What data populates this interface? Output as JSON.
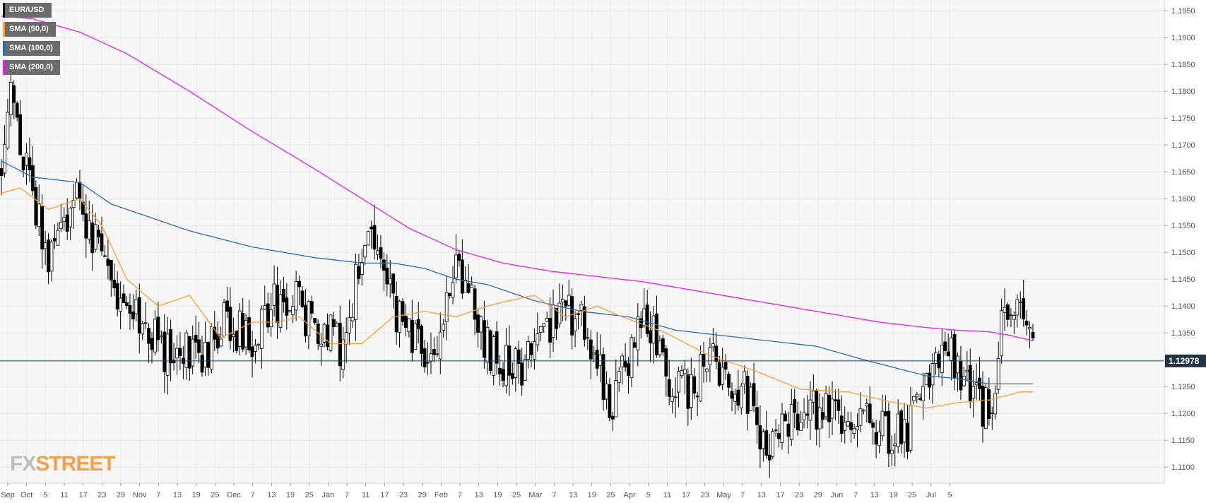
{
  "chart_data": {
    "type": "candlestick",
    "legend": [
      {
        "label": "EUR/USD",
        "color": "#000000"
      },
      {
        "label": "SMA (50,0)",
        "color": "#f7a034"
      },
      {
        "label": "SMA (100,0)",
        "color": "#2f6bb4"
      },
      {
        "label": "SMA (200,0)",
        "color": "#e61ee6"
      }
    ],
    "last_price_label": "1.12978",
    "last_price": 1.12978,
    "ylim": [
      1.107,
      1.197
    ],
    "y_ticks": [
      "1.1950",
      "1.1900",
      "1.1850",
      "1.1800",
      "1.1750",
      "1.1700",
      "1.1650",
      "1.1600",
      "1.1550",
      "1.1500",
      "1.1450",
      "1.1400",
      "1.1350",
      "1.1300",
      "1.1250",
      "1.1200",
      "1.1150",
      "1.1100"
    ],
    "x_ticks": [
      "Sep",
      "Oct",
      "5",
      "11",
      "17",
      "23",
      "29",
      "Nov",
      "7",
      "13",
      "19",
      "25",
      "Dec",
      "7",
      "13",
      "19",
      "25",
      "Jan",
      "7",
      "11",
      "17",
      "23",
      "29",
      "Feb",
      "7",
      "13",
      "19",
      "25",
      "Mar",
      "7",
      "13",
      "19",
      "25",
      "Apr",
      "5",
      "11",
      "17",
      "23",
      "May",
      "7",
      "13",
      "17",
      "23",
      "29",
      "Jun",
      "7",
      "13",
      "19",
      "25",
      "Jul",
      "5"
    ],
    "series_keypoints": {
      "close": [
        [
          0,
          1.168
        ],
        [
          3,
          1.178
        ],
        [
          8,
          1.165
        ],
        [
          15,
          1.15
        ],
        [
          25,
          1.16
        ],
        [
          35,
          1.145
        ],
        [
          45,
          1.135
        ],
        [
          52,
          1.132
        ],
        [
          58,
          1.133
        ],
        [
          65,
          1.13
        ],
        [
          72,
          1.138
        ],
        [
          80,
          1.132
        ],
        [
          90,
          1.143
        ],
        [
          100,
          1.137
        ],
        [
          108,
          1.133
        ],
        [
          117,
          1.152
        ],
        [
          125,
          1.14
        ],
        [
          132,
          1.134
        ],
        [
          138,
          1.13
        ],
        [
          145,
          1.147
        ],
        [
          155,
          1.133
        ],
        [
          163,
          1.128
        ],
        [
          172,
          1.133
        ],
        [
          181,
          1.14
        ],
        [
          188,
          1.133
        ],
        [
          195,
          1.121
        ],
        [
          205,
          1.14
        ],
        [
          212,
          1.128
        ],
        [
          220,
          1.125
        ],
        [
          228,
          1.13
        ],
        [
          238,
          1.123
        ],
        [
          245,
          1.113
        ],
        [
          255,
          1.122
        ],
        [
          265,
          1.121
        ],
        [
          272,
          1.117
        ],
        [
          280,
          1.118
        ],
        [
          288,
          1.115
        ],
        [
          296,
          1.125
        ],
        [
          300,
          1.133
        ],
        [
          305,
          1.128
        ],
        [
          310,
          1.122
        ],
        [
          316,
          1.122
        ],
        [
          320,
          1.14
        ],
        [
          326,
          1.137
        ],
        [
          329,
          1.13
        ]
      ],
      "sma50": [
        [
          0,
          1.161
        ],
        [
          6,
          1.162
        ],
        [
          15,
          1.158
        ],
        [
          25,
          1.16
        ],
        [
          32,
          1.155
        ],
        [
          40,
          1.145
        ],
        [
          50,
          1.14
        ],
        [
          60,
          1.142
        ],
        [
          70,
          1.134
        ],
        [
          80,
          1.137
        ],
        [
          88,
          1.137
        ],
        [
          95,
          1.138
        ],
        [
          105,
          1.133
        ],
        [
          115,
          1.133
        ],
        [
          125,
          1.138
        ],
        [
          135,
          1.139
        ],
        [
          145,
          1.138
        ],
        [
          155,
          1.14
        ],
        [
          162,
          1.141
        ],
        [
          170,
          1.142
        ],
        [
          180,
          1.138
        ],
        [
          190,
          1.14
        ],
        [
          198,
          1.138
        ],
        [
          212,
          1.135
        ],
        [
          225,
          1.131
        ],
        [
          240,
          1.128
        ],
        [
          255,
          1.1245
        ],
        [
          270,
          1.124
        ],
        [
          285,
          1.122
        ],
        [
          295,
          1.121
        ],
        [
          305,
          1.122
        ],
        [
          315,
          1.1225
        ],
        [
          325,
          1.124
        ],
        [
          329,
          1.124
        ]
      ],
      "sma100": [
        [
          0,
          1.167
        ],
        [
          10,
          1.164
        ],
        [
          25,
          1.163
        ],
        [
          35,
          1.159
        ],
        [
          45,
          1.157
        ],
        [
          60,
          1.154
        ],
        [
          80,
          1.151
        ],
        [
          100,
          1.149
        ],
        [
          115,
          1.148
        ],
        [
          125,
          1.148
        ],
        [
          135,
          1.147
        ],
        [
          145,
          1.145
        ],
        [
          155,
          1.144
        ],
        [
          170,
          1.141
        ],
        [
          185,
          1.139
        ],
        [
          200,
          1.138
        ],
        [
          215,
          1.1355
        ],
        [
          230,
          1.1345
        ],
        [
          245,
          1.1335
        ],
        [
          260,
          1.1325
        ],
        [
          275,
          1.13
        ],
        [
          285,
          1.1285
        ],
        [
          295,
          1.127
        ],
        [
          305,
          1.1265
        ],
        [
          315,
          1.1255
        ],
        [
          329,
          1.1255
        ]
      ],
      "sma200": [
        [
          0,
          1.194
        ],
        [
          10,
          1.1935
        ],
        [
          25,
          1.191
        ],
        [
          40,
          1.187
        ],
        [
          60,
          1.18
        ],
        [
          80,
          1.1725
        ],
        [
          100,
          1.1655
        ],
        [
          115,
          1.16
        ],
        [
          130,
          1.1545
        ],
        [
          145,
          1.1505
        ],
        [
          160,
          1.148
        ],
        [
          175,
          1.1465
        ],
        [
          190,
          1.1455
        ],
        [
          205,
          1.1445
        ],
        [
          220,
          1.143
        ],
        [
          235,
          1.1415
        ],
        [
          250,
          1.14
        ],
        [
          265,
          1.1385
        ],
        [
          280,
          1.137
        ],
        [
          295,
          1.136
        ],
        [
          305,
          1.1355
        ],
        [
          315,
          1.1352
        ],
        [
          322,
          1.1345
        ],
        [
          329,
          1.1335
        ]
      ]
    }
  }
}
